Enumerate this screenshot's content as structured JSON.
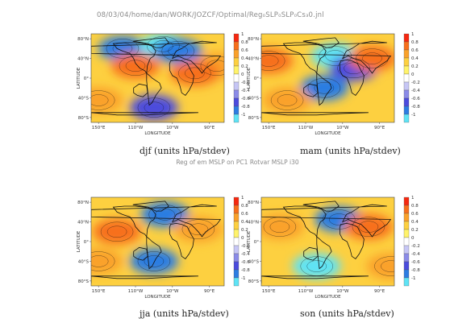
{
  "header": {
    "path_title": "08/03/04/home/dan/WORK/JOZCF/Optimal/Reg₀SLP₀SLP₀Cs₃0.jnl"
  },
  "middle_title": "Reg of em MSLP on PC1 Rotvar MSLP i30",
  "colors": {
    "scale": [
      "#f52810",
      "#f76f1c",
      "#faa12a",
      "#fdd040",
      "#fff36a",
      "#ffffff",
      "#c6c6f5",
      "#8b8be8",
      "#4b4bdd",
      "#2c7de2",
      "#5fe3f5"
    ],
    "land_outline": "#111111",
    "contour": "#111111"
  },
  "chart_data": [
    {
      "type": "heatmap",
      "title": "djf (units hPa/stdev)",
      "xlabel": "LONGITUDE",
      "ylabel": "LATITUDE",
      "xticks": [
        "150°E",
        "110°W",
        "10°W",
        "90°E"
      ],
      "yticks": [
        "80°N",
        "40°N",
        "0°",
        "40°S",
        "80°S"
      ],
      "colorbar": {
        "ticks": [
          "1",
          "0.8",
          "0.6",
          "0.4",
          "0.2",
          "0",
          "-0.2",
          "-0.4",
          "-0.6",
          "-0.8",
          "-1"
        ],
        "range": [
          -1,
          1
        ]
      },
      "regions": [
        {
          "lon": 215,
          "lat": 60,
          "value": -0.7
        },
        {
          "lon": 325,
          "lat": 65,
          "value": -0.9
        },
        {
          "lon": 5,
          "lat": 55,
          "value": -0.8
        },
        {
          "lon": 250,
          "lat": 25,
          "value": 0.8
        },
        {
          "lon": 110,
          "lat": 25,
          "value": 0.6
        },
        {
          "lon": 50,
          "lat": 10,
          "value": 0.9
        },
        {
          "lon": 150,
          "lat": -45,
          "value": 0.7
        },
        {
          "lon": 300,
          "lat": -60,
          "value": -0.6
        }
      ]
    },
    {
      "type": "heatmap",
      "title": "mam (units hPa/stdev)",
      "xlabel": "LONGITUDE",
      "ylabel": "LATITUDE",
      "xticks": [
        "150°E",
        "110°W",
        "10°W",
        "90°E"
      ],
      "yticks": [
        "80°N",
        "40°N",
        "0°",
        "40°S",
        "80°S"
      ],
      "colorbar": {
        "ticks": [
          "1",
          "0.8",
          "0.6",
          "0.4",
          "0.2",
          "0",
          "-0.2",
          "-0.4",
          "-0.6",
          "-0.8",
          "-1"
        ],
        "range": [
          -1,
          1
        ]
      },
      "regions": [
        {
          "lon": 330,
          "lat": 45,
          "value": -0.9
        },
        {
          "lon": 20,
          "lat": 20,
          "value": -0.6
        },
        {
          "lon": 300,
          "lat": -20,
          "value": -0.7
        },
        {
          "lon": 150,
          "lat": 35,
          "value": 0.9
        },
        {
          "lon": 70,
          "lat": 40,
          "value": 0.8
        },
        {
          "lon": 200,
          "lat": -45,
          "value": 0.6
        }
      ]
    },
    {
      "type": "heatmap",
      "title": "jja (units hPa/stdev)",
      "xlabel": "LONGITUDE",
      "ylabel": "LATITUDE",
      "xticks": [
        "150°E",
        "110°W",
        "10°W",
        "90°E"
      ],
      "yticks": [
        "80°N",
        "40°N",
        "0°",
        "40°S",
        "80°S"
      ],
      "colorbar": {
        "ticks": [
          "1",
          "0.8",
          "0.6",
          "0.4",
          "0.2",
          "0",
          "-0.2",
          "-0.4",
          "-0.6",
          "-0.8",
          "-1"
        ],
        "range": [
          -1,
          1
        ]
      },
      "regions": [
        {
          "lon": 330,
          "lat": 55,
          "value": -0.8
        },
        {
          "lon": 300,
          "lat": -40,
          "value": -0.7
        },
        {
          "lon": 200,
          "lat": 20,
          "value": 0.9
        },
        {
          "lon": 60,
          "lat": 25,
          "value": 0.7
        },
        {
          "lon": 150,
          "lat": -40,
          "value": 0.6
        }
      ]
    },
    {
      "type": "heatmap",
      "title": "son (units hPa/stdev)",
      "xlabel": "LONGITUDE",
      "ylabel": "LATITUDE",
      "xticks": [
        "150°E",
        "110°W",
        "10°W",
        "90°E"
      ],
      "yticks": [
        "80°N",
        "40°N",
        "0°",
        "40°S",
        "80°S"
      ],
      "colorbar": {
        "ticks": [
          "1",
          "0.8",
          "0.6",
          "0.4",
          "0.2",
          "0",
          "-0.2",
          "-0.4",
          "-0.6",
          "-0.8",
          "-1"
        ],
        "range": [
          -1,
          1
        ]
      },
      "regions": [
        {
          "lon": 340,
          "lat": 45,
          "value": -0.8
        },
        {
          "lon": 280,
          "lat": -50,
          "value": -0.9
        },
        {
          "lon": 180,
          "lat": 30,
          "value": 0.7
        },
        {
          "lon": 60,
          "lat": 30,
          "value": 0.8
        },
        {
          "lon": 120,
          "lat": -50,
          "value": 0.6
        }
      ]
    }
  ]
}
